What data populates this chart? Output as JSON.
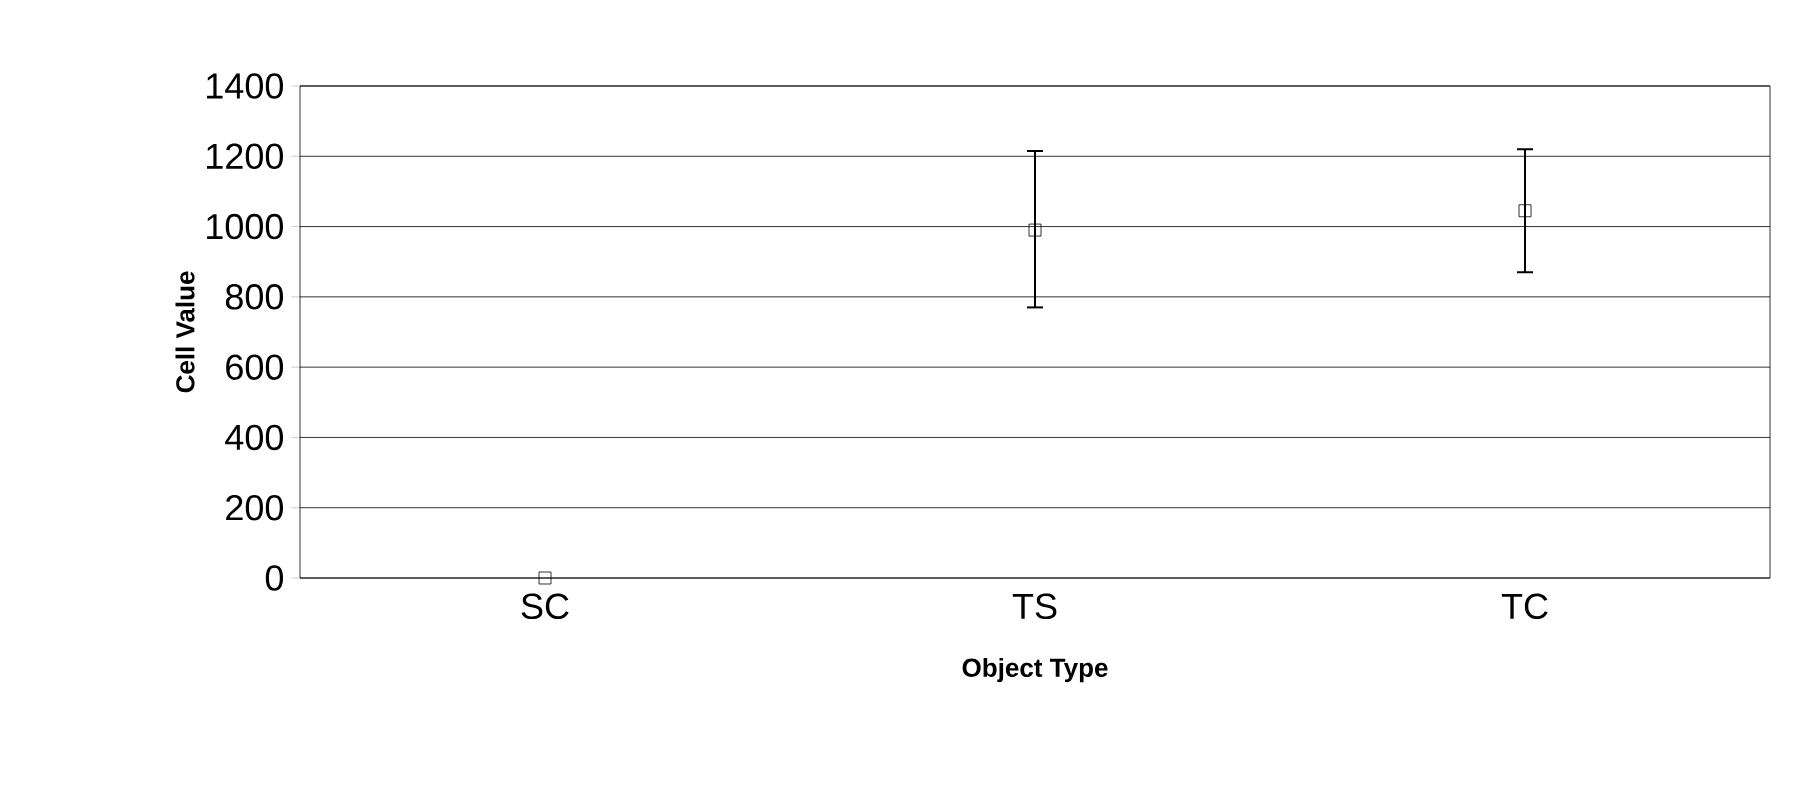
{
  "chart_data": {
    "type": "scatter",
    "xlabel": "Object Type",
    "ylabel": "Cell Value",
    "categories": [
      "SC",
      "TS",
      "TC"
    ],
    "values": [
      0,
      990,
      1045
    ],
    "errors": [
      null,
      [
        770,
        1215
      ],
      [
        870,
        1220
      ]
    ],
    "color": "#000000",
    "marker": "square",
    "ylim": [
      0,
      1400
    ],
    "yticks": [
      0,
      200,
      400,
      600,
      800,
      1000,
      1200,
      1400
    ],
    "grid": "y"
  }
}
